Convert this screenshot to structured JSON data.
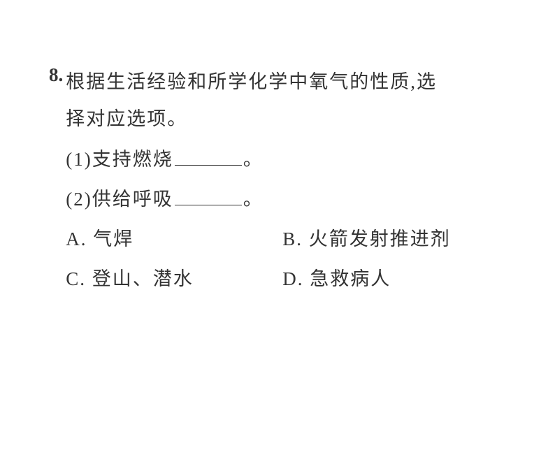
{
  "question": {
    "number": "8.",
    "text_line1": "根据生活经验和所学化学中氧气的性质,选",
    "text_line2": "择对应选项。",
    "sub_items": [
      {
        "label": "(1)",
        "text": "支持燃烧",
        "suffix": "。"
      },
      {
        "label": "(2)",
        "text": "供给呼吸",
        "suffix": "。"
      }
    ],
    "options": [
      {
        "letter": "A.",
        "text": "气焊"
      },
      {
        "letter": "B.",
        "text": "火箭发射推进剂"
      },
      {
        "letter": "C.",
        "text": "登山、潜水"
      },
      {
        "letter": "D.",
        "text": "急救病人"
      }
    ]
  },
  "style": {
    "font_size": 27,
    "text_color": "#333333",
    "background_color": "#ffffff",
    "blank_width": 96,
    "letter_spacing": 2
  }
}
